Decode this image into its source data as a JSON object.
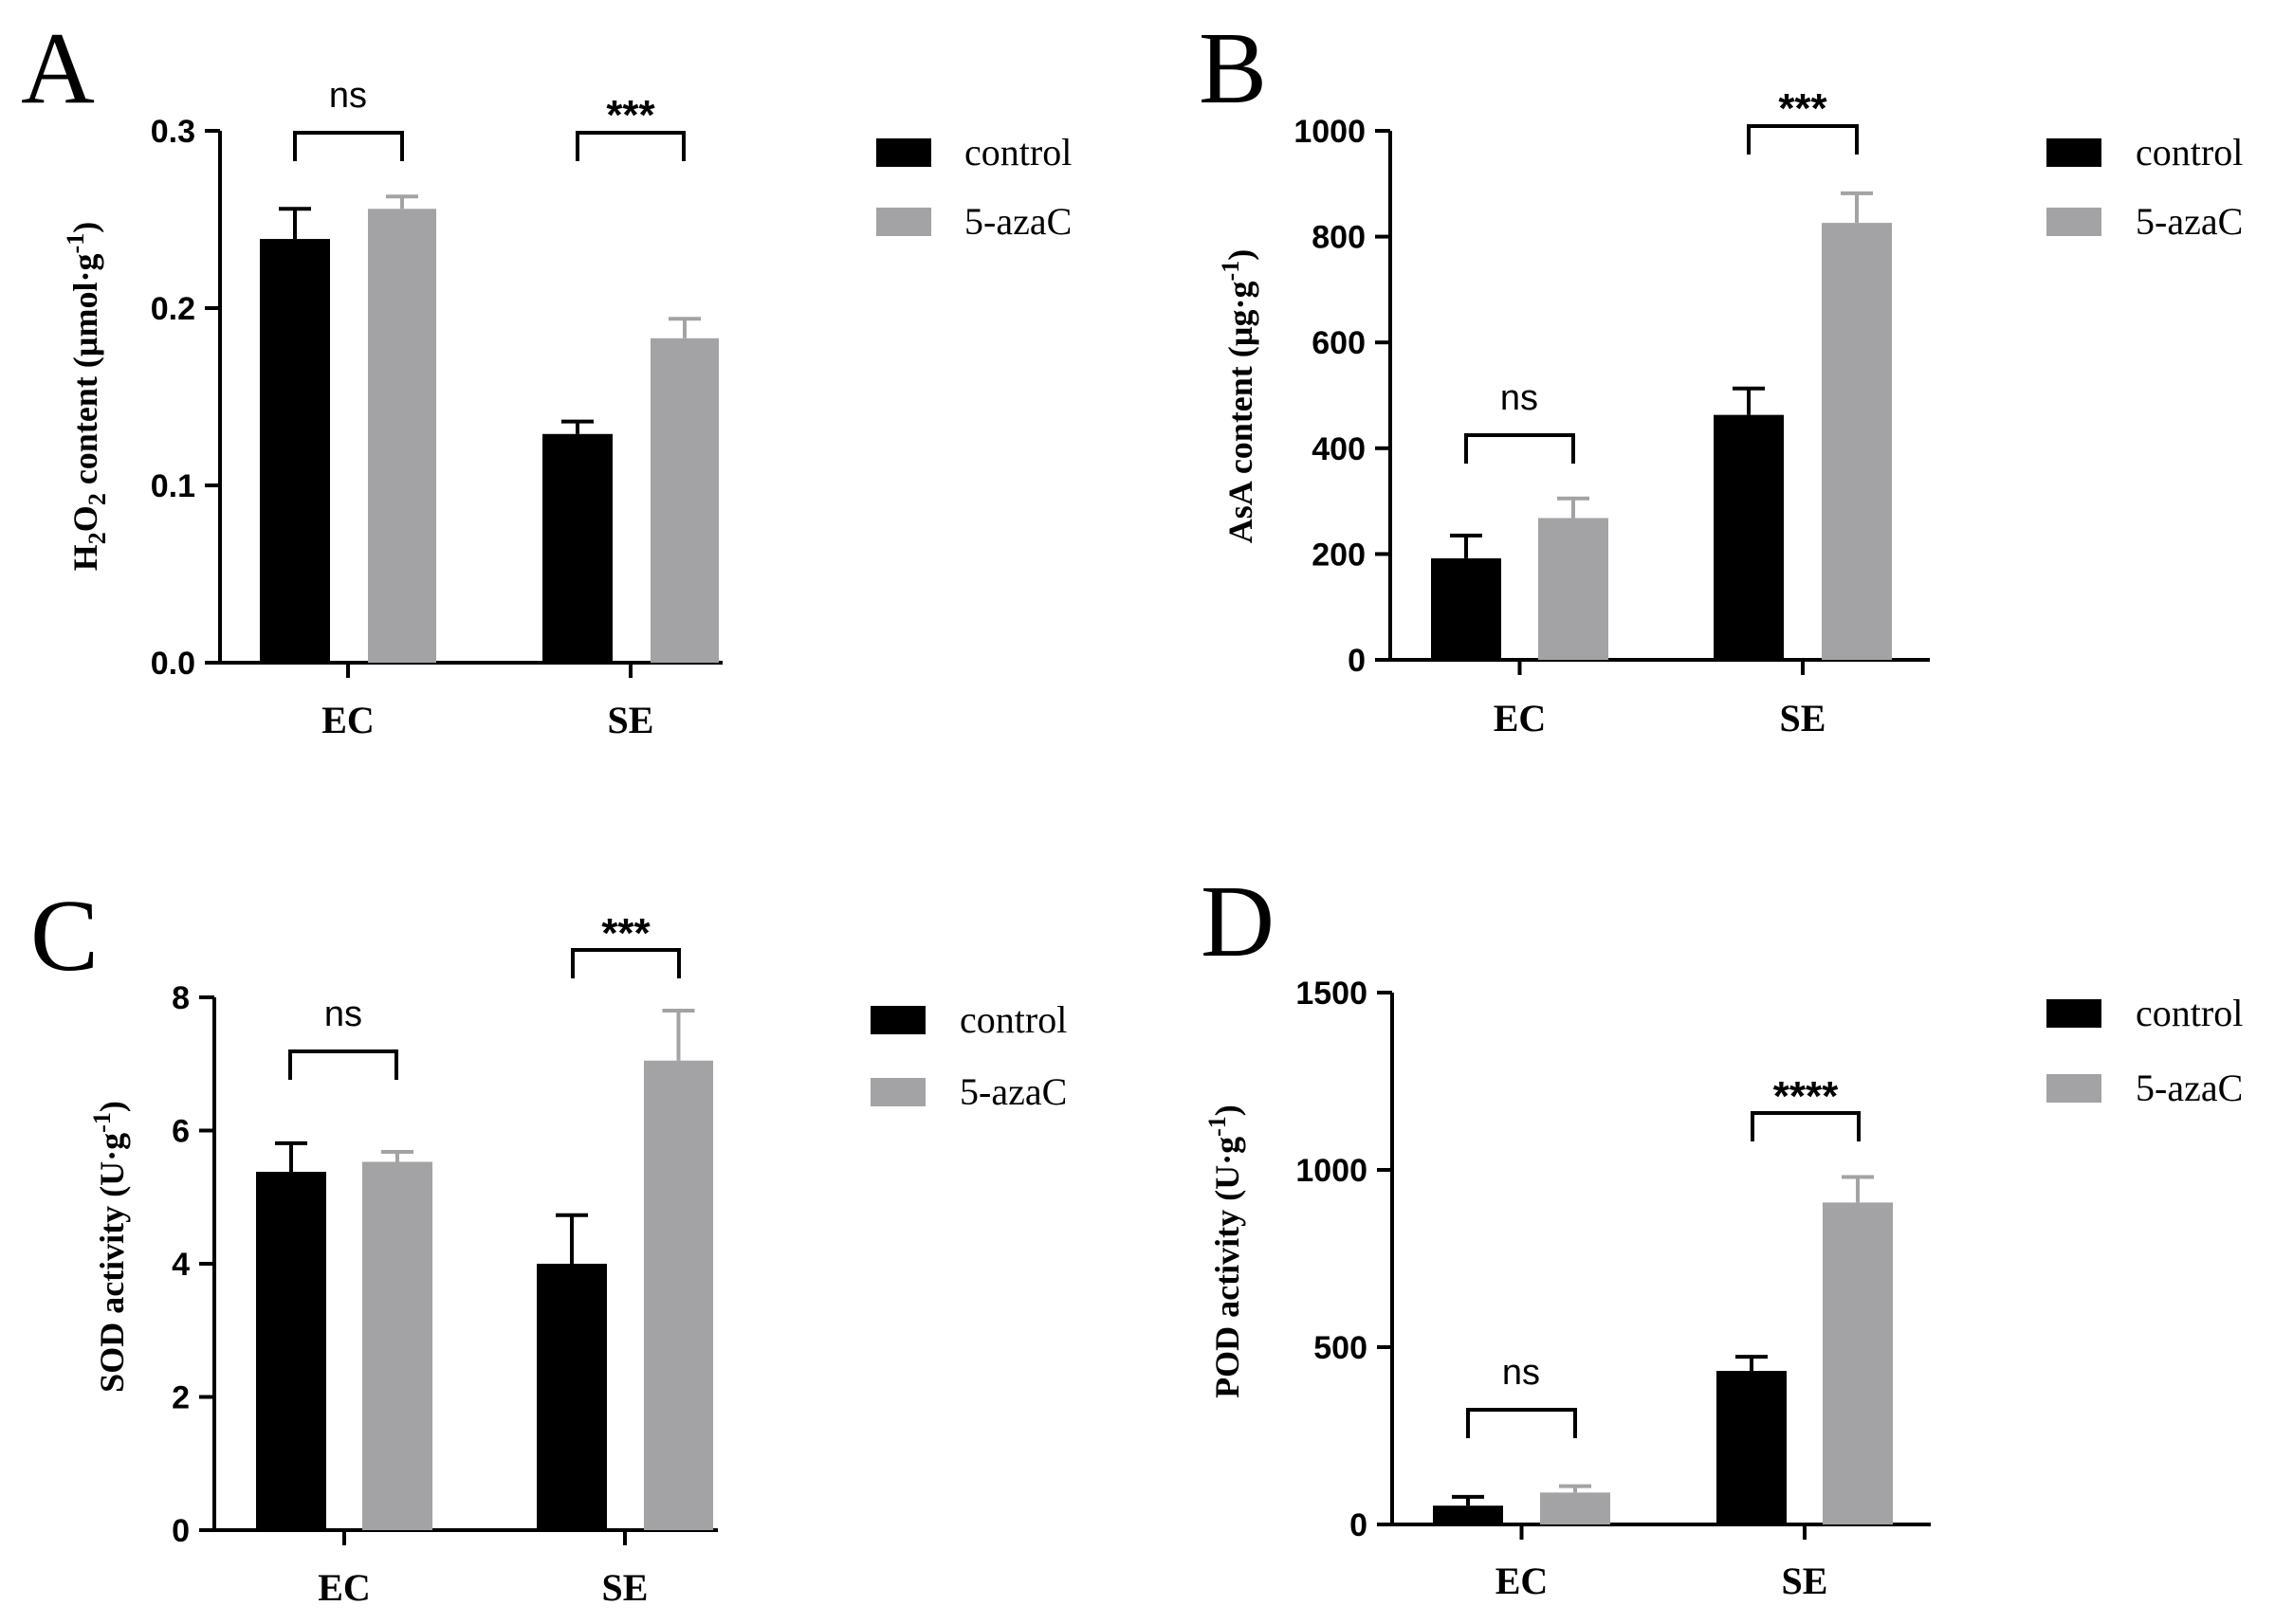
{
  "colors": {
    "control": "#000000",
    "treated": "#a3a3a6",
    "axis": "#000000"
  },
  "legend": {
    "entries": [
      "control",
      "5-azaC"
    ]
  },
  "chart_data": [
    {
      "panel": "A",
      "type": "bar",
      "title": "",
      "categories": [
        "EC",
        "SE"
      ],
      "series": [
        {
          "name": "control",
          "values": [
            0.239,
            0.129
          ],
          "errors": [
            0.017,
            0.007
          ]
        },
        {
          "name": "5-azaC",
          "values": [
            0.256,
            0.183
          ],
          "errors": [
            0.007,
            0.011
          ]
        }
      ],
      "ylabel": {
        "base": "H",
        "sub1": "2",
        "mid": "O",
        "sub2": "2",
        "rest": " content (µmol·g",
        "sup": "-1",
        "tail": ")"
      },
      "ylim": [
        0,
        0.3
      ],
      "yticks": [
        "0.0",
        "0.1",
        "0.2",
        "0.3"
      ],
      "significance": [
        "ns",
        "***"
      ],
      "legend_position": "right"
    },
    {
      "panel": "B",
      "type": "bar",
      "title": "",
      "categories": [
        "EC",
        "SE"
      ],
      "series": [
        {
          "name": "control",
          "values": [
            192,
            463
          ],
          "errors": [
            43,
            50
          ]
        },
        {
          "name": "5-azaC",
          "values": [
            268,
            826
          ],
          "errors": [
            37,
            56
          ]
        }
      ],
      "ylabel": {
        "base": "AsA content (µg·g",
        "sup": "-1",
        "tail": ")"
      },
      "ylim": [
        0,
        1000
      ],
      "yticks": [
        "0",
        "200",
        "400",
        "600",
        "800",
        "1000"
      ],
      "significance": [
        "ns",
        "***"
      ],
      "legend_position": "right"
    },
    {
      "panel": "C",
      "type": "bar",
      "title": "",
      "categories": [
        "EC",
        "SE"
      ],
      "series": [
        {
          "name": "control",
          "values": [
            5.38,
            4.0
          ],
          "errors": [
            0.43,
            0.73
          ]
        },
        {
          "name": "5-azaC",
          "values": [
            5.53,
            7.05
          ],
          "errors": [
            0.15,
            0.75
          ]
        }
      ],
      "ylabel": {
        "base": "SOD activity (U·g",
        "sup": "-1",
        "tail": ")"
      },
      "ylim": [
        0,
        8
      ],
      "yticks": [
        "0",
        "2",
        "4",
        "6",
        "8"
      ],
      "significance": [
        "ns",
        "***"
      ],
      "legend_position": "right"
    },
    {
      "panel": "D",
      "type": "bar",
      "title": "",
      "categories": [
        "EC",
        "SE"
      ],
      "series": [
        {
          "name": "control",
          "values": [
            53,
            433
          ],
          "errors": [
            25,
            40
          ]
        },
        {
          "name": "5-azaC",
          "values": [
            90,
            908
          ],
          "errors": [
            18,
            72
          ]
        }
      ],
      "ylabel": {
        "base": "POD activity (U·g",
        "sup": "-1",
        "tail": ")"
      },
      "ylim": [
        0,
        1500
      ],
      "yticks": [
        "0",
        "500",
        "1000",
        "1500"
      ],
      "significance": [
        "ns",
        "****"
      ],
      "legend_position": "right"
    }
  ]
}
